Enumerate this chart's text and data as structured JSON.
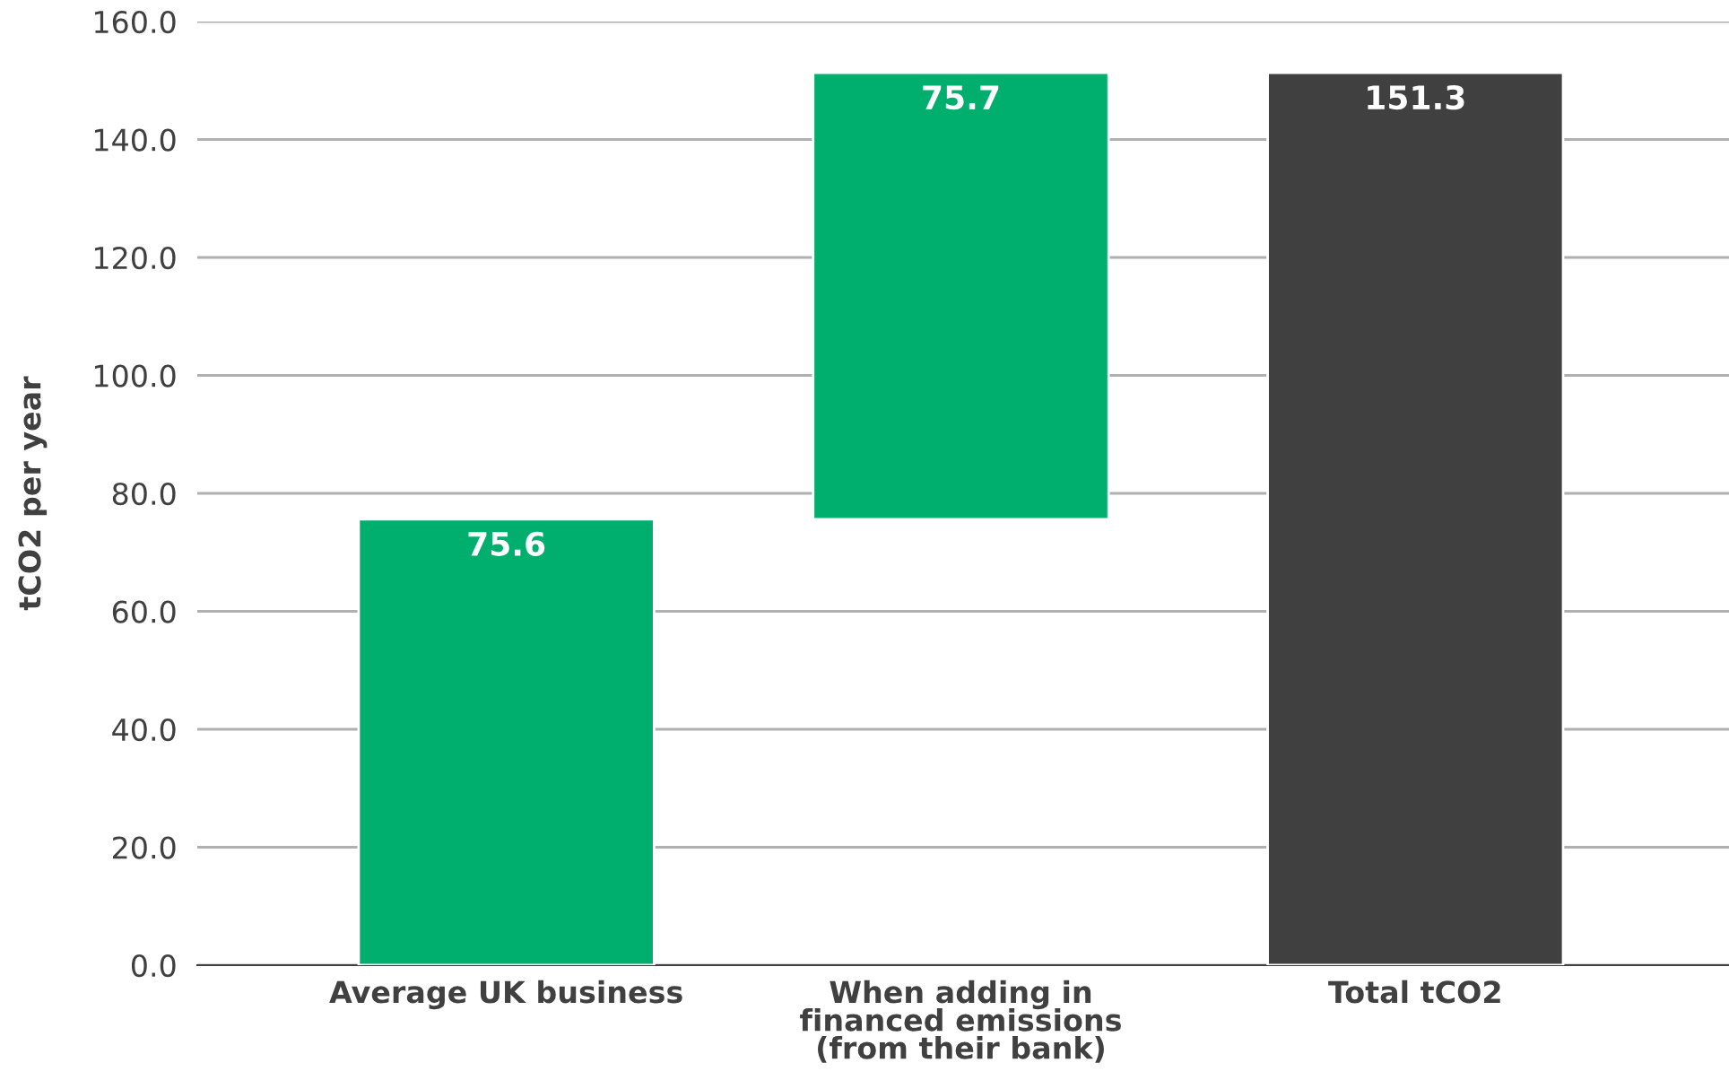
{
  "chart_data": {
    "type": "bar",
    "ylabel": "tCO2 per year",
    "categories": [
      "Average UK business",
      "When adding in\nfinanced emissions\n(from their bank)",
      "Total tCO2"
    ],
    "values": [
      75.6,
      75.7,
      151.3
    ],
    "base": [
      0,
      75.6,
      0
    ],
    "colors": [
      "#00ae6e",
      "#00ae6e",
      "#404040"
    ],
    "data_labels": true,
    "ylim": [
      0,
      160
    ],
    "yticks": [
      {
        "value": 0,
        "label": "0.0"
      },
      {
        "value": 20,
        "label": "20.0"
      },
      {
        "value": 40,
        "label": "40.0"
      },
      {
        "value": 60,
        "label": "60.0"
      },
      {
        "value": 80,
        "label": "80.0"
      },
      {
        "value": 100,
        "label": "100.0"
      },
      {
        "value": 120,
        "label": "120.0"
      },
      {
        "value": 140,
        "label": "140.0"
      },
      {
        "value": 160,
        "label": "160.0"
      }
    ],
    "grid": "y",
    "legend": false
  }
}
